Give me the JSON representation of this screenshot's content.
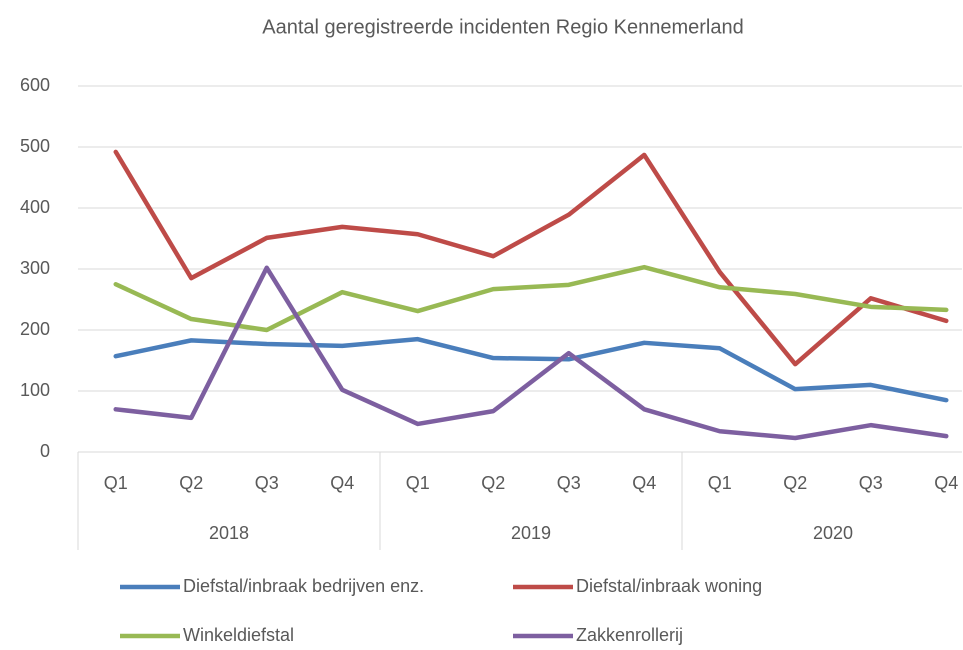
{
  "chart_data": {
    "type": "line",
    "title": "Aantal geregistreerde incidenten Regio Kennemerland",
    "categories": [
      "Q1",
      "Q2",
      "Q3",
      "Q4",
      "Q1",
      "Q2",
      "Q3",
      "Q4",
      "Q1",
      "Q2",
      "Q3",
      "Q4"
    ],
    "category_groups": [
      "2018",
      "2019",
      "2020"
    ],
    "series": [
      {
        "name": "Diefstal/inbraak bedrijven enz.",
        "color": "#4a7ebb",
        "values": [
          157,
          183,
          177,
          174,
          185,
          154,
          152,
          179,
          170,
          103,
          110,
          85
        ]
      },
      {
        "name": "Diefstal/inbraak woning",
        "color": "#be4b48",
        "values": [
          492,
          285,
          351,
          369,
          357,
          321,
          389,
          487,
          295,
          144,
          252,
          215
        ]
      },
      {
        "name": "Winkeldiefstal",
        "color": "#98b954",
        "values": [
          275,
          218,
          200,
          262,
          231,
          267,
          274,
          303,
          270,
          259,
          238,
          233
        ]
      },
      {
        "name": "Zakkenrollerij",
        "color": "#7d5fa0",
        "values": [
          70,
          56,
          302,
          102,
          46,
          67,
          162,
          70,
          34,
          23,
          44,
          26
        ]
      }
    ],
    "ylim": [
      0,
      600
    ],
    "yticks": [
      0,
      100,
      200,
      300,
      400,
      500,
      600
    ],
    "grid": true,
    "legend": "bottom"
  }
}
